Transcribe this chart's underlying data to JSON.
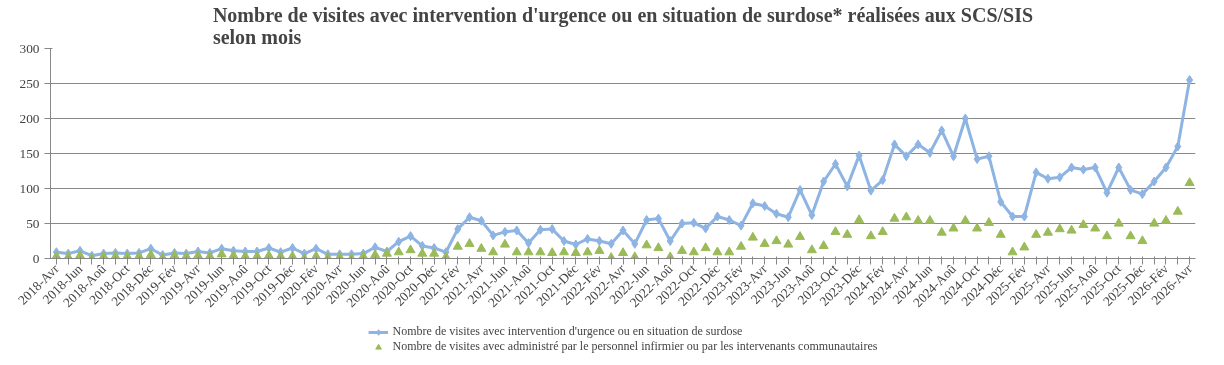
{
  "chart_data": {
    "type": "line",
    "title": "Nombre de visites avec intervention d'urgence ou en situation de surdose* réalisées aux SCS/SIS\nselon mois",
    "categories": [
      "2018-Avr",
      null,
      "2018-Jun",
      null,
      "2018-Aoû",
      null,
      "2018-Oct",
      null,
      "2018-Déc",
      null,
      "2019-Fév",
      null,
      "2019-Avr",
      null,
      "2019-Jun",
      null,
      "2019-Aoû",
      null,
      "2019-Oct",
      null,
      "2019-Déc",
      null,
      "2020-Fév",
      null,
      "2020-Avr",
      null,
      "2020-Jun",
      null,
      "2020-Aoû",
      null,
      "2020-Oct",
      null,
      "2020-Déc",
      null,
      "2021-Fév",
      null,
      "2021-Avr",
      null,
      "2021-Jun",
      null,
      "2021-Aoû",
      null,
      "2021-Oct",
      null,
      "2021-Déc",
      null,
      "2022-Fév",
      null,
      "2022-Avr",
      null,
      "2022-Jun",
      null,
      "2022-Aoû",
      null,
      "2022-Oct",
      null,
      "2022-Déc",
      null,
      "2023-Fév",
      null,
      "2023-Avr",
      null,
      "2023-Jun",
      null,
      "2023-Aoû",
      null,
      "2023-Oct",
      null,
      "2023-Déc",
      null,
      "2024-Fév",
      null,
      "2024-Avr",
      null,
      "2024-Jun",
      null,
      "2024-Aoû",
      null,
      "2024-Oct",
      null,
      "2024-Déc",
      null,
      "2025-Fév",
      null,
      "2025-Avr",
      null,
      "2025-Jun",
      null,
      "2025-Aoû",
      null,
      "2025-Oct",
      null,
      "2025-Déc",
      null,
      "2026-Fév",
      null,
      "2026-Avr"
    ],
    "series": [
      {
        "name": "Nombre de visites avec intervention d'urgence ou en situation de surdose",
        "marker": "diamond",
        "color": "#8eb4e3",
        "values": [
          9,
          7,
          11,
          4,
          7,
          8,
          7,
          8,
          14,
          5,
          8,
          7,
          10,
          8,
          14,
          11,
          10,
          10,
          15,
          9,
          15,
          7,
          14,
          6,
          6,
          6,
          7,
          16,
          10,
          24,
          32,
          18,
          15,
          9,
          42,
          59,
          54,
          33,
          38,
          40,
          22,
          41,
          42,
          25,
          20,
          28,
          25,
          21,
          40,
          21,
          55,
          57,
          25,
          50,
          51,
          43,
          60,
          55,
          47,
          79,
          75,
          64,
          59,
          98,
          62,
          110,
          135,
          103,
          147,
          97,
          112,
          163,
          146,
          163,
          151,
          183,
          146,
          200,
          142,
          146,
          81,
          60,
          60,
          123,
          114,
          116,
          130,
          127,
          130,
          94,
          130,
          98,
          92,
          110,
          130,
          160,
          255
        ]
      },
      {
        "name": "Nombre de visites avec administré par le personnel infirmier ou par les intervenants communautaires",
        "type": "scatter",
        "marker": "triangle",
        "color": "#9bbb59",
        "values": [
          3,
          2,
          4,
          0,
          3,
          3,
          3,
          3,
          5,
          1,
          4,
          3,
          4,
          3,
          6,
          4,
          3,
          3,
          4,
          3,
          3,
          0,
          3,
          1,
          2,
          0,
          3,
          5,
          7,
          9,
          12,
          7,
          7,
          2,
          17,
          21,
          14,
          9,
          20,
          9,
          9,
          9,
          8,
          9,
          8,
          9,
          11,
          1,
          8,
          2,
          19,
          15,
          2,
          11,
          9,
          15,
          9,
          9,
          17,
          30,
          21,
          25,
          20,
          31,
          12,
          18,
          38,
          34,
          55,
          32,
          38,
          57,
          59,
          54,
          54,
          37,
          43,
          54,
          43,
          51,
          34,
          9,
          16,
          34,
          37,
          42,
          40,
          48,
          43,
          32,
          50,
          32,
          25,
          50,
          54,
          67,
          108
        ]
      }
    ],
    "ylim": [
      0,
      300
    ],
    "yticks": [
      0,
      50,
      100,
      150,
      200,
      250,
      300
    ],
    "grid": "y",
    "legend": "bottom"
  }
}
